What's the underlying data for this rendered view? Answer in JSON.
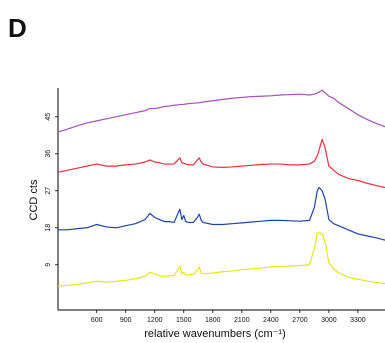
{
  "panel_label": "D",
  "chart_data": {
    "type": "line",
    "xlabel": "relative wavenumbers (cm⁻¹)",
    "ylabel": "CCD cts",
    "x": [
      200,
      300,
      400,
      500,
      600,
      700,
      800,
      900,
      1000,
      1100,
      1150,
      1200,
      1250,
      1300,
      1350,
      1400,
      1440,
      1460,
      1480,
      1500,
      1520,
      1550,
      1600,
      1640,
      1660,
      1680,
      1700,
      1800,
      1900,
      2000,
      2100,
      2200,
      2300,
      2400,
      2500,
      2600,
      2700,
      2800,
      2850,
      2880,
      2900,
      2930,
      2960,
      3000,
      3050,
      3100,
      3200,
      3300,
      3400,
      3500,
      3580
    ],
    "series": [
      {
        "color": "#a552b8",
        "values": [
          41.3,
          42,
          42.8,
          43.5,
          44,
          44.5,
          45,
          45.5,
          46,
          46.5,
          47,
          47,
          47.2,
          47.5,
          47.6,
          47.8,
          47.9,
          48,
          48,
          48,
          48.1,
          48.2,
          48.3,
          48.4,
          48.4,
          48.5,
          48.6,
          48.9,
          49.2,
          49.5,
          49.7,
          49.9,
          50,
          50.1,
          50.3,
          50.4,
          50.5,
          50.3,
          50.5,
          50.8,
          51,
          51.5,
          50.8,
          50,
          49.5,
          48.5,
          47,
          45.5,
          44.3,
          43.3,
          42.6
        ]
      },
      {
        "color": "#e8323c",
        "values": [
          31.5,
          32,
          32.5,
          33,
          33.5,
          33,
          33,
          33.3,
          33.5,
          34,
          34.5,
          34,
          33.8,
          33.5,
          33.5,
          33.5,
          34.5,
          35,
          33.8,
          33.7,
          33.5,
          33.3,
          33.3,
          34.5,
          35,
          34,
          33.5,
          32.8,
          32.7,
          32.8,
          33,
          33.2,
          33.4,
          33.5,
          33.5,
          33.3,
          33.3,
          33.5,
          34.2,
          35.5,
          37,
          39.5,
          37.5,
          33,
          32,
          31,
          30,
          29.5,
          28.8,
          28.2,
          27.8
        ]
      },
      {
        "color": "#1f44a0",
        "values": [
          17.5,
          17.5,
          17.8,
          18,
          18.8,
          18.2,
          18,
          18.5,
          19,
          20,
          21.5,
          20.5,
          20,
          19.5,
          19.5,
          19.3,
          21.5,
          22.5,
          20,
          21,
          19.5,
          19.3,
          19.3,
          20.5,
          21.3,
          19.8,
          19.3,
          18.8,
          18.8,
          19,
          19.2,
          19.4,
          19.6,
          19.8,
          19.8,
          19.7,
          19.6,
          19.8,
          23,
          27,
          27.8,
          27,
          25,
          20,
          19,
          18.5,
          17.5,
          16.5,
          16,
          15.5,
          15
        ]
      },
      {
        "color": "#e6e619",
        "values": [
          3.8,
          4,
          4.2,
          4.6,
          5,
          4.8,
          5,
          5.2,
          5.6,
          6.2,
          7.2,
          6.8,
          6.3,
          6.2,
          6.3,
          6.4,
          7.8,
          8.7,
          6.8,
          7.2,
          6.5,
          6.6,
          6.7,
          7.8,
          8.4,
          7,
          6.8,
          7,
          7.3,
          7.5,
          7.8,
          8,
          8.2,
          8.5,
          8.6,
          8.7,
          8.8,
          9,
          13,
          16.5,
          16.8,
          16.5,
          14.5,
          9.5,
          8,
          7,
          6,
          5.5,
          5,
          4.7,
          4.4
        ]
      }
    ],
    "xlim": [
      200,
      3580
    ],
    "xticks": [
      600,
      900,
      1200,
      1500,
      1800,
      2100,
      2400,
      2700,
      3000,
      3300
    ],
    "ylim": [
      -2,
      52
    ],
    "yticks": [
      9,
      18,
      27,
      36,
      45
    ],
    "grid": false
  }
}
